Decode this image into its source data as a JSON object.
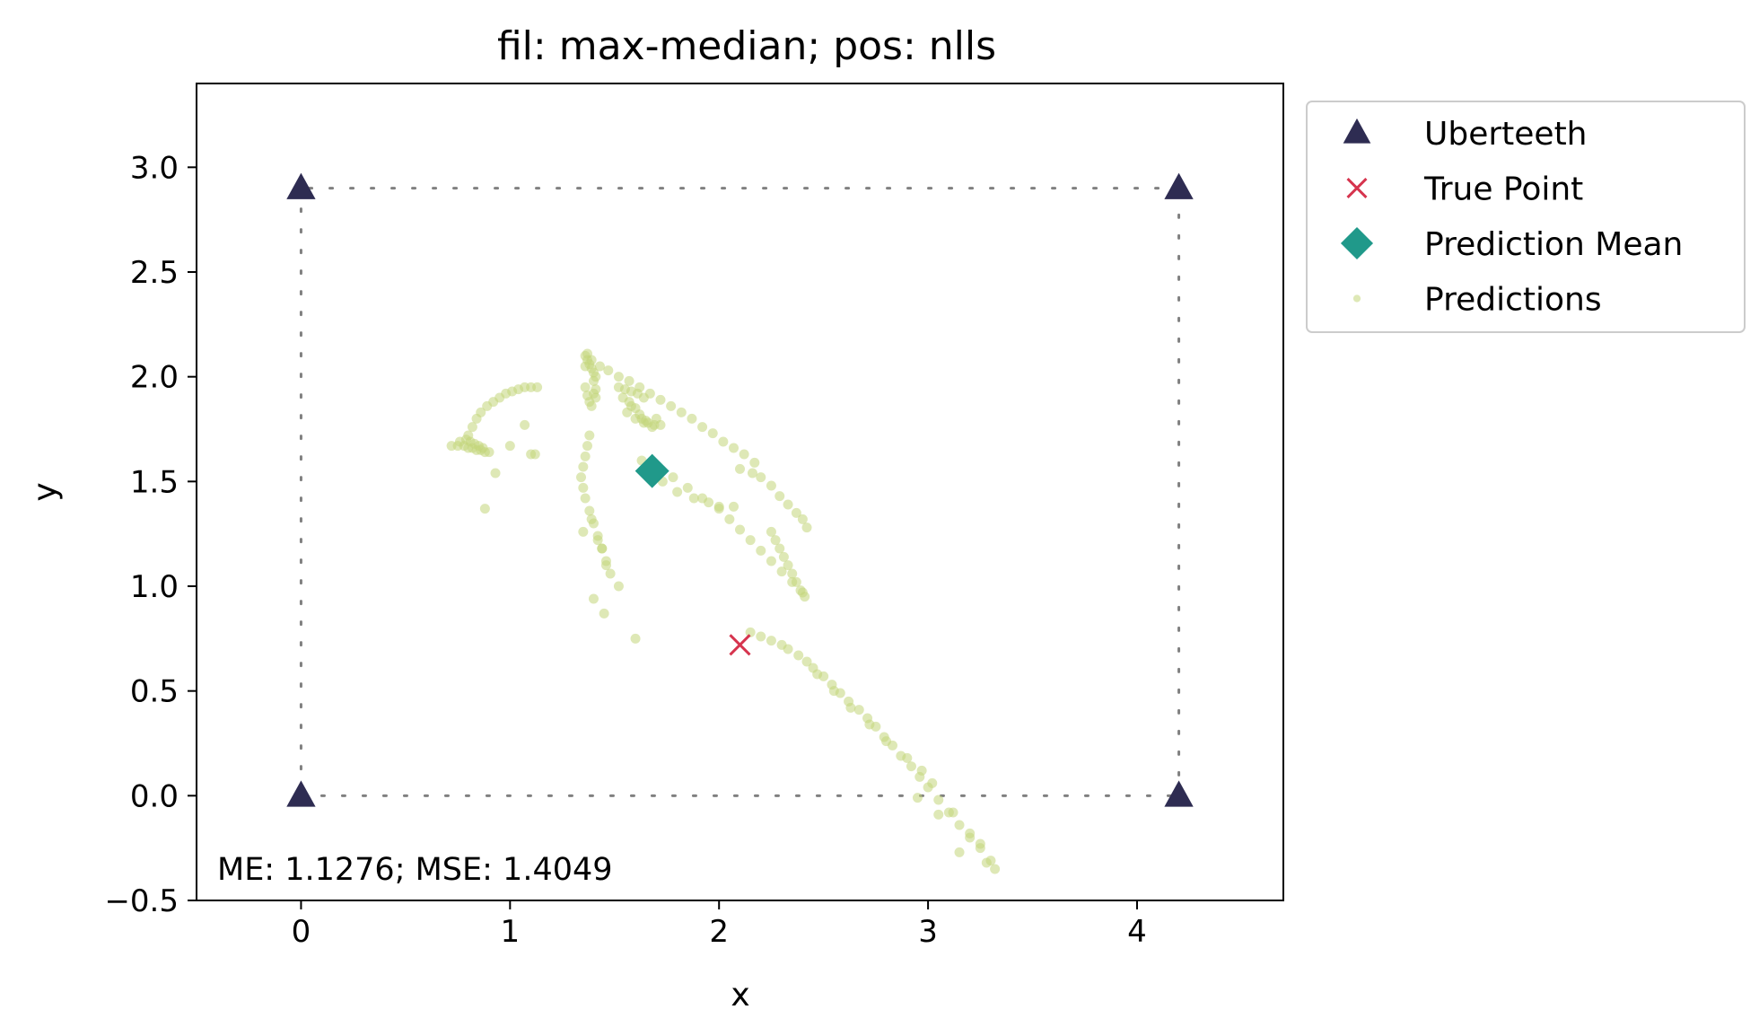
{
  "chart_data": {
    "type": "scatter",
    "title": "fil: max-median; pos: nlls",
    "xlabel": "x",
    "ylabel": "y",
    "xlim": [
      -0.5,
      4.7
    ],
    "ylim": [
      -0.5,
      3.4
    ],
    "xticks": [
      0,
      1,
      2,
      3,
      4
    ],
    "xtick_labels": [
      "0",
      "1",
      "2",
      "3",
      "4"
    ],
    "yticks": [
      -0.5,
      0.0,
      0.5,
      1.0,
      1.5,
      2.0,
      2.5,
      3.0
    ],
    "ytick_labels": [
      "−0.5",
      "0.0",
      "0.5",
      "1.0",
      "1.5",
      "2.0",
      "2.5",
      "3.0"
    ],
    "grid": false,
    "legend_position": "outside-top-right",
    "stats_text": "ME: 1.1276;  MSE: 1.4049",
    "boundary": [
      [
        0,
        0
      ],
      [
        4.2,
        0
      ],
      [
        4.2,
        2.9
      ],
      [
        0,
        2.9
      ]
    ],
    "colors": {
      "uberteeth": "#2e2c52",
      "true_point": "#d6344e",
      "prediction_mean": "#20998a",
      "predictions": "#c2d67a",
      "boundary": "#808080"
    },
    "series": [
      {
        "name": "Uberteeth",
        "marker": "triangle",
        "x": [
          0,
          4.2,
          0,
          4.2
        ],
        "y": [
          2.9,
          2.9,
          0.0,
          0.0
        ]
      },
      {
        "name": "True Point",
        "marker": "x",
        "x": [
          2.1
        ],
        "y": [
          0.72
        ]
      },
      {
        "name": "Prediction Mean",
        "marker": "diamond",
        "x": [
          1.68
        ],
        "y": [
          1.55
        ]
      },
      {
        "name": "Predictions",
        "marker": "dot",
        "x": [
          0.72,
          0.75,
          0.78,
          0.8,
          0.82,
          0.84,
          0.86,
          0.88,
          0.9,
          0.76,
          0.79,
          0.81,
          0.83,
          0.85,
          0.87,
          0.8,
          0.82,
          0.84,
          0.86,
          0.89,
          0.92,
          0.95,
          0.98,
          1.01,
          1.04,
          1.07,
          1.1,
          1.13,
          1.12,
          0.88,
          0.93,
          1.0,
          1.07,
          1.1,
          1.36,
          1.37,
          1.38,
          1.39,
          1.4,
          1.4,
          1.41,
          1.41,
          1.36,
          1.37,
          1.38,
          1.39,
          1.4,
          1.41,
          1.36,
          1.37,
          1.39,
          1.43,
          1.47,
          1.52,
          1.57,
          1.62,
          1.67,
          1.72,
          1.77,
          1.82,
          1.87,
          1.92,
          1.97,
          2.02,
          2.07,
          2.12,
          2.17,
          1.52,
          1.55,
          1.58,
          1.61,
          1.64,
          1.54,
          1.57,
          1.6,
          1.63,
          1.66,
          1.69,
          1.72,
          1.56,
          1.6,
          1.64,
          1.68,
          1.58,
          1.62,
          1.65,
          1.7,
          1.63,
          1.67,
          1.73,
          1.8,
          1.88,
          1.95,
          2.0,
          2.07,
          2.1,
          2.16,
          2.2,
          2.25,
          2.29,
          2.33,
          2.37,
          2.4,
          2.42,
          2.25,
          2.27,
          2.29,
          2.31,
          2.33,
          2.35,
          2.37,
          2.39,
          2.41,
          1.38,
          1.37,
          1.36,
          1.35,
          1.34,
          1.35,
          1.36,
          1.38,
          1.4,
          1.42,
          1.44,
          1.46,
          1.48,
          1.52,
          1.39,
          1.42,
          1.44,
          1.46,
          1.35,
          1.4,
          1.45,
          1.6,
          1.7,
          1.78,
          1.85,
          1.92,
          2.0,
          2.05,
          2.1,
          2.15,
          2.2,
          2.25,
          2.3,
          2.35,
          2.4,
          2.15,
          2.2,
          2.25,
          2.3,
          2.33,
          2.38,
          2.42,
          2.45,
          2.5,
          2.54,
          2.58,
          2.62,
          2.67,
          2.71,
          2.75,
          2.79,
          2.83,
          2.87,
          2.92,
          2.96,
          3.0,
          3.05,
          3.1,
          3.15,
          3.2,
          3.25,
          3.3,
          2.47,
          2.55,
          2.63,
          2.72,
          2.8,
          2.9,
          2.97,
          3.02,
          3.12,
          3.2,
          3.28,
          3.32,
          3.25,
          3.15,
          3.05,
          2.95
        ],
        "y": [
          1.67,
          1.67,
          1.67,
          1.66,
          1.66,
          1.65,
          1.65,
          1.64,
          1.64,
          1.69,
          1.7,
          1.69,
          1.68,
          1.67,
          1.66,
          1.72,
          1.76,
          1.8,
          1.83,
          1.86,
          1.88,
          1.9,
          1.92,
          1.93,
          1.94,
          1.95,
          1.95,
          1.95,
          1.63,
          1.37,
          1.54,
          1.67,
          1.77,
          1.63,
          2.1,
          2.08,
          2.06,
          2.04,
          2.02,
          1.98,
          1.94,
          1.9,
          1.95,
          1.91,
          1.88,
          1.86,
          1.92,
          2.0,
          2.05,
          2.11,
          2.08,
          2.05,
          2.03,
          2.0,
          1.98,
          1.95,
          1.92,
          1.89,
          1.86,
          1.83,
          1.8,
          1.76,
          1.73,
          1.69,
          1.66,
          1.63,
          1.59,
          1.95,
          1.94,
          1.93,
          1.92,
          1.9,
          1.9,
          1.88,
          1.85,
          1.8,
          1.78,
          1.77,
          1.77,
          1.83,
          1.8,
          1.78,
          1.76,
          1.86,
          1.82,
          1.79,
          1.8,
          1.6,
          1.55,
          1.5,
          1.45,
          1.42,
          1.4,
          1.38,
          1.38,
          1.56,
          1.54,
          1.52,
          1.48,
          1.43,
          1.39,
          1.35,
          1.32,
          1.28,
          1.26,
          1.22,
          1.18,
          1.14,
          1.1,
          1.06,
          1.02,
          0.98,
          0.95,
          1.72,
          1.67,
          1.62,
          1.57,
          1.52,
          1.47,
          1.42,
          1.36,
          1.3,
          1.24,
          1.18,
          1.12,
          1.06,
          1.0,
          1.32,
          1.22,
          1.18,
          1.1,
          1.26,
          0.94,
          0.87,
          0.75,
          1.57,
          1.52,
          1.47,
          1.42,
          1.37,
          1.32,
          1.27,
          1.22,
          1.17,
          1.12,
          1.07,
          1.02,
          0.97,
          0.78,
          0.76,
          0.74,
          0.72,
          0.7,
          0.67,
          0.64,
          0.61,
          0.57,
          0.53,
          0.49,
          0.45,
          0.41,
          0.37,
          0.33,
          0.28,
          0.24,
          0.19,
          0.14,
          0.09,
          0.04,
          -0.02,
          -0.08,
          -0.14,
          -0.2,
          -0.25,
          -0.31,
          0.58,
          0.5,
          0.42,
          0.34,
          0.26,
          0.18,
          0.12,
          0.06,
          -0.08,
          -0.18,
          -0.32,
          -0.35,
          -0.23,
          -0.27,
          -0.09,
          -0.01
        ]
      }
    ]
  }
}
